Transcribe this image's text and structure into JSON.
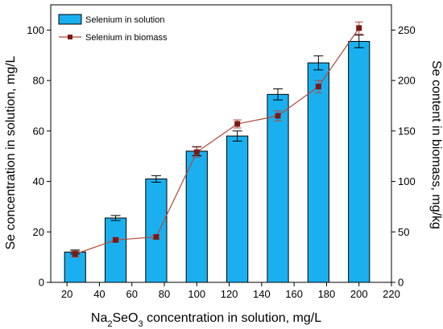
{
  "chart_data": {
    "type": "bar",
    "x_label_parts": [
      "Na",
      "2",
      "SeO",
      "3",
      " concentration in  solution, mg/L"
    ],
    "ylabel_left": "Se concentration in solution, mg/L",
    "ylabel_right": "Se content in biomass, mg/kg",
    "x": [
      25,
      50,
      75,
      100,
      125,
      150,
      175,
      200
    ],
    "xlim": [
      10,
      220
    ],
    "xticks": [
      20,
      40,
      60,
      80,
      100,
      120,
      140,
      160,
      180,
      200,
      220
    ],
    "ylim_left": [
      0,
      110
    ],
    "yticks_left": [
      0,
      20,
      40,
      60,
      80,
      100
    ],
    "ylim_right": [
      0,
      275
    ],
    "yticks_right": [
      0,
      50,
      100,
      150,
      200,
      250
    ],
    "grid": false,
    "legend_position": "top-left",
    "series": [
      {
        "name": "Selenium in solution",
        "type": "bar",
        "axis": "left",
        "color": "#1ab0f0",
        "values": [
          12,
          25.5,
          41,
          52,
          58,
          74.5,
          87,
          95.5
        ],
        "errors": [
          0.8,
          1,
          1.3,
          1.8,
          2,
          2.2,
          2.8,
          2.5
        ]
      },
      {
        "name": "Selenium in biomass",
        "type": "line",
        "axis": "right",
        "color": "#b5473a",
        "marker_color": "#7a1a14",
        "values": [
          28,
          42,
          45,
          129,
          157,
          165,
          194,
          252
        ],
        "errors": [
          3,
          2,
          2,
          5,
          4,
          5,
          6,
          6
        ]
      }
    ]
  }
}
